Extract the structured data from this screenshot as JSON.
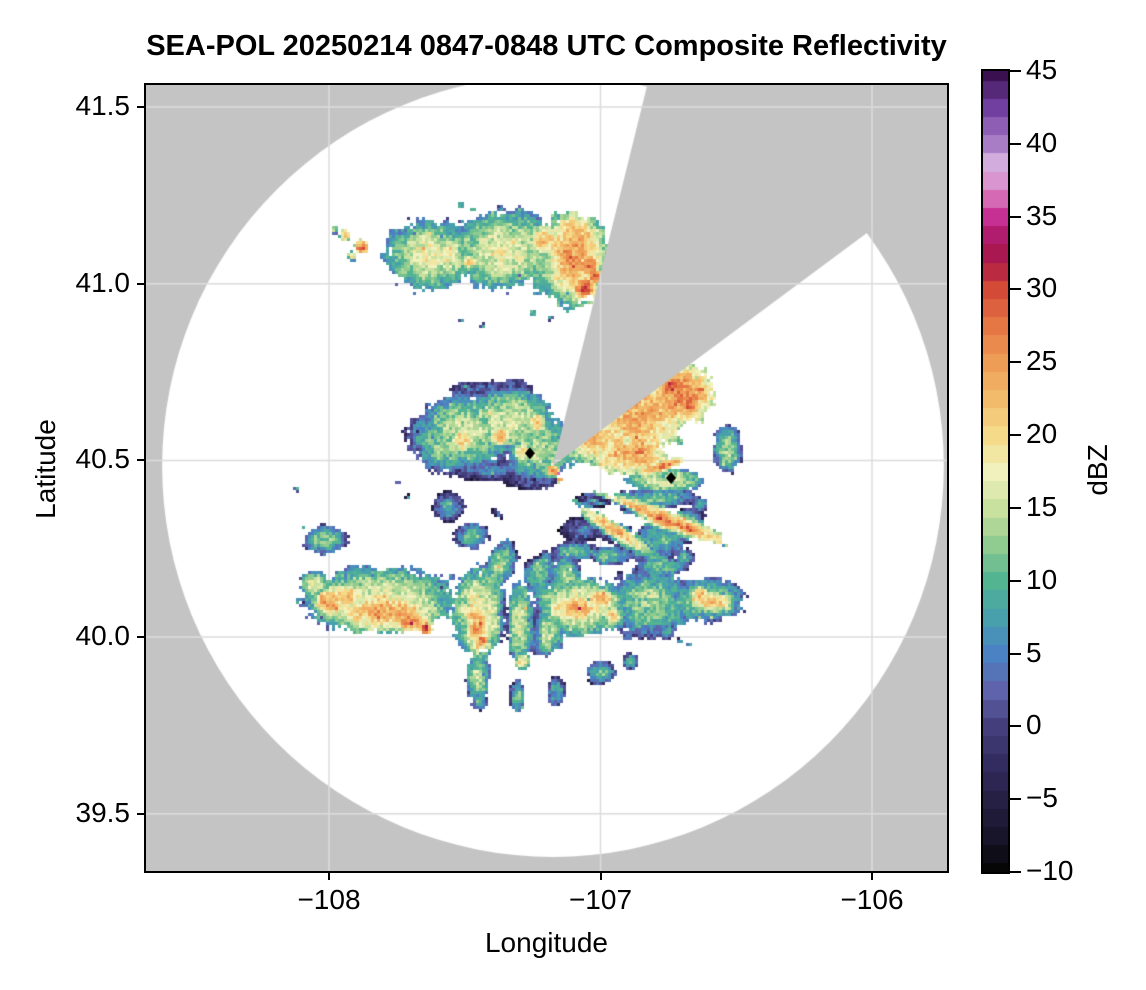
{
  "chart_data": {
    "type": "heatmap",
    "title": "SEA-POL 20250214 0847-0848 UTC Composite Reflectivity",
    "xlabel": "Longitude",
    "ylabel": "Latitude",
    "grid": true,
    "x_axis": {
      "tick_values": [
        -108,
        -107,
        -106
      ],
      "tick_labels": [
        "−108",
        "−107",
        "−106"
      ],
      "limits": [
        -108.67,
        -105.72
      ]
    },
    "y_axis": {
      "tick_values": [
        39.5,
        40.0,
        40.5,
        41.0,
        41.5
      ],
      "tick_labels": [
        "39.5",
        "40.0",
        "40.5",
        "41.0",
        "41.5"
      ],
      "limits": [
        39.34,
        41.56
      ]
    },
    "colorbar": {
      "label": "dBZ",
      "range": [
        -10,
        45
      ],
      "tick_values": [
        -10,
        -5,
        0,
        5,
        10,
        15,
        20,
        25,
        30,
        35,
        40,
        45
      ],
      "tick_labels": [
        "−10",
        "−5",
        "0",
        "5",
        "10",
        "15",
        "20",
        "25",
        "30",
        "35",
        "40",
        "45"
      ]
    },
    "colors": {
      "outside_range": "#c4c4c4",
      "no_echo": "#ffffff",
      "gridline": "#dcdcdc",
      "spine": "#000000",
      "marker": "#000000"
    },
    "radar_site": {
      "lon": -107.175,
      "lat": 40.484,
      "range_deg_lat": 1.106
    },
    "blocked_sector_deg": {
      "from_az": 13.9,
      "to_az": 53.4
    },
    "site_markers": [
      {
        "lon": -107.26,
        "lat": 40.52
      },
      {
        "lon": -106.74,
        "lat": 40.45
      }
    ],
    "colormap_stops": [
      [
        -10,
        "#060606"
      ],
      [
        -7.5,
        "#18142a"
      ],
      [
        -5,
        "#262045"
      ],
      [
        -2.5,
        "#332c60"
      ],
      [
        0,
        "#443f7c"
      ],
      [
        2.5,
        "#5f63ab"
      ],
      [
        5,
        "#4a82c3"
      ],
      [
        7.5,
        "#47a0ac"
      ],
      [
        10,
        "#53b492"
      ],
      [
        12.5,
        "#90cb90"
      ],
      [
        15,
        "#c9e19e"
      ],
      [
        17.5,
        "#f0f1bd"
      ],
      [
        20,
        "#f4da89"
      ],
      [
        22.5,
        "#f1bb6b"
      ],
      [
        25,
        "#ee9d56"
      ],
      [
        27.5,
        "#e57744"
      ],
      [
        30,
        "#d34a37"
      ],
      [
        31.5,
        "#b52442"
      ],
      [
        33,
        "#a31257"
      ],
      [
        35,
        "#c73093"
      ],
      [
        36.5,
        "#d874bb"
      ],
      [
        38.5,
        "#dab5e2"
      ],
      [
        40,
        "#a97cc6"
      ],
      [
        42.5,
        "#713fa0"
      ],
      [
        45,
        "#3a1050"
      ]
    ],
    "echo_format": "[lon, lat, rx_deg, ry_deg, rot_deg, peak_dbz]",
    "echoes": [
      [
        -107.628,
        41.081,
        0.127,
        0.099,
        0,
        17
      ],
      [
        -107.352,
        41.095,
        0.156,
        0.113,
        0,
        17
      ],
      [
        -107.113,
        41.067,
        0.127,
        0.127,
        0,
        17
      ],
      [
        -107.094,
        41.081,
        0.079,
        0.119,
        0,
        25
      ],
      [
        -107.039,
        41.053,
        0.028,
        0.028,
        0,
        27
      ],
      [
        -107.058,
        40.988,
        0.028,
        0.028,
        0,
        31
      ],
      [
        -107.021,
        41.022,
        0.023,
        0.023,
        0,
        28
      ],
      [
        -107.205,
        41.124,
        0.042,
        0.042,
        0,
        22
      ],
      [
        -107.555,
        41.095,
        0.034,
        0.034,
        0,
        20
      ],
      [
        -107.481,
        41.061,
        0.028,
        0.028,
        0,
        19
      ],
      [
        -107.941,
        41.138,
        0.017,
        0.017,
        0,
        23
      ],
      [
        -107.878,
        41.104,
        0.02,
        0.02,
        0,
        27
      ],
      [
        -107.875,
        41.101,
        0.008,
        0.008,
        0,
        30
      ],
      [
        -107.978,
        41.152,
        0.011,
        0.011,
        0,
        15
      ],
      [
        -107.915,
        41.078,
        0.014,
        0.014,
        0,
        19
      ],
      [
        -107.518,
        41.223,
        0.011,
        0.011,
        0,
        13
      ],
      [
        -107.47,
        41.211,
        0.008,
        0.008,
        0,
        12
      ],
      [
        -107.4,
        41.2,
        0.008,
        0.008,
        0,
        12
      ],
      [
        -107.297,
        41.208,
        0.011,
        0.011,
        0,
        13
      ],
      [
        -107.51,
        40.897,
        0.008,
        0.008,
        0,
        11
      ],
      [
        -107.433,
        40.88,
        0.008,
        0.008,
        0,
        10
      ],
      [
        -107.252,
        40.917,
        0.011,
        0.011,
        0,
        11
      ],
      [
        -107.186,
        40.903,
        0.008,
        0.008,
        0,
        10
      ],
      [
        -107.127,
        40.928,
        0.008,
        0.008,
        0,
        11
      ],
      [
        -107.481,
        40.586,
        0.141,
        0.099,
        0,
        15
      ],
      [
        -107.333,
        40.614,
        0.127,
        0.085,
        0,
        16
      ],
      [
        -107.573,
        40.538,
        0.085,
        0.071,
        0,
        13
      ],
      [
        -107.224,
        40.53,
        0.099,
        0.085,
        0,
        15
      ],
      [
        -107.628,
        40.572,
        0.071,
        0.062,
        0,
        10
      ],
      [
        -107.507,
        40.558,
        0.034,
        0.034,
        0,
        22
      ],
      [
        -107.371,
        40.569,
        0.028,
        0.028,
        0,
        23
      ],
      [
        -107.235,
        40.606,
        0.025,
        0.025,
        0,
        24
      ],
      [
        -107.29,
        40.524,
        0.025,
        0.025,
        0,
        21
      ],
      [
        -107.176,
        40.473,
        0.017,
        0.017,
        0,
        26
      ],
      [
        -107.15,
        40.445,
        0.008,
        0.008,
        0,
        30
      ],
      [
        -107.157,
        40.464,
        0.006,
        0.006,
        0,
        35
      ],
      [
        -107.444,
        40.699,
        0.085,
        0.028,
        0,
        4
      ],
      [
        -107.315,
        40.705,
        0.057,
        0.023,
        0,
        3
      ],
      [
        -107.555,
        40.657,
        0.028,
        0.028,
        0,
        5
      ],
      [
        -107.407,
        40.473,
        0.127,
        0.034,
        0,
        5
      ],
      [
        -107.26,
        40.445,
        0.085,
        0.028,
        0,
        4
      ],
      [
        -107.426,
        40.45,
        0.011,
        0.011,
        0,
        0
      ],
      [
        -107.333,
        40.436,
        0.008,
        0.008,
        0,
        -1
      ],
      [
        -107.068,
        40.303,
        0.071,
        0.04,
        0,
        4
      ],
      [
        -107.039,
        40.309,
        0.057,
        0.034,
        0,
        5
      ],
      [
        -106.947,
        40.295,
        0.051,
        0.028,
        0,
        6
      ],
      [
        -107.02,
        40.388,
        0.057,
        0.023,
        0,
        5
      ],
      [
        -107.131,
        40.261,
        0.011,
        0.011,
        0,
        -2
      ],
      [
        -107.058,
        40.331,
        0.008,
        0.008,
        0,
        0
      ],
      [
        -107.094,
        40.241,
        0.071,
        0.028,
        0,
        11
      ],
      [
        -106.965,
        40.23,
        0.057,
        0.028,
        0,
        12
      ],
      [
        -106.862,
        40.246,
        0.028,
        0.028,
        0,
        9
      ],
      [
        -106.8,
        40.246,
        0.023,
        0.023,
        0,
        8
      ],
      [
        -106.707,
        40.318,
        0.014,
        0.014,
        0,
        0
      ],
      [
        -106.663,
        40.297,
        0.011,
        0.011,
        0,
        2
      ],
      [
        -107.558,
        40.368,
        0.048,
        0.04,
        0,
        9
      ],
      [
        -107.58,
        40.388,
        0.023,
        0.023,
        0,
        5
      ],
      [
        -107.473,
        40.286,
        0.048,
        0.04,
        0,
        11
      ],
      [
        -107.381,
        40.351,
        0.023,
        0.011,
        45,
        3
      ],
      [
        -107.709,
        40.396,
        0.008,
        0.008,
        0,
        5
      ],
      [
        -107.746,
        40.439,
        0.008,
        0.008,
        0,
        8
      ],
      [
        -108.118,
        40.419,
        0.008,
        0.008,
        0,
        11
      ],
      [
        -108.015,
        40.275,
        0.062,
        0.042,
        0,
        12
      ],
      [
        -108.041,
        40.258,
        0.011,
        0.011,
        0,
        9
      ],
      [
        -108.096,
        40.309,
        0.008,
        0.008,
        0,
        11
      ],
      [
        -106.855,
        40.628,
        0.127,
        0.113,
        0,
        24
      ],
      [
        -106.707,
        40.685,
        0.099,
        0.085,
        0,
        26
      ],
      [
        -106.737,
        40.705,
        0.04,
        0.04,
        0,
        29
      ],
      [
        -106.67,
        40.657,
        0.034,
        0.034,
        0,
        27
      ],
      [
        -106.634,
        40.699,
        0.014,
        0.014,
        0,
        28
      ],
      [
        -107.002,
        40.558,
        0.113,
        0.071,
        0,
        22
      ],
      [
        -106.892,
        40.515,
        0.113,
        0.057,
        0,
        24
      ],
      [
        -106.855,
        40.524,
        0.071,
        0.017,
        -18,
        27
      ],
      [
        -106.774,
        40.484,
        0.071,
        0.014,
        -18,
        26
      ],
      [
        -106.763,
        40.445,
        0.113,
        0.034,
        0,
        17
      ],
      [
        -106.8,
        40.394,
        0.127,
        0.028,
        0,
        11
      ],
      [
        -106.634,
        40.374,
        0.023,
        0.023,
        0,
        9
      ],
      [
        -106.531,
        40.53,
        0.042,
        0.071,
        0,
        13
      ],
      [
        -106.781,
        40.694,
        0.057,
        0.023,
        -37,
        12
      ],
      [
        -106.947,
        40.628,
        0.042,
        0.042,
        0,
        18
      ],
      [
        -106.752,
        40.331,
        0.192,
        0.025,
        20,
        25
      ],
      [
        -106.737,
        40.323,
        0.136,
        0.011,
        20,
        28
      ],
      [
        -106.947,
        40.303,
        0.113,
        0.02,
        33,
        23
      ],
      [
        -106.855,
        40.255,
        0.085,
        0.028,
        25,
        10
      ],
      [
        -106.774,
        40.201,
        0.079,
        0.034,
        0,
        11
      ],
      [
        -106.689,
        40.224,
        0.028,
        0.028,
        0,
        9
      ],
      [
        -106.615,
        40.105,
        0.113,
        0.062,
        0,
        14
      ],
      [
        -106.589,
        40.099,
        0.062,
        0.028,
        0,
        22
      ],
      [
        -106.634,
        40.122,
        0.023,
        0.023,
        0,
        24
      ],
      [
        -106.707,
        39.989,
        0.008,
        0.008,
        0,
        9
      ],
      [
        -106.674,
        39.978,
        0.008,
        0.008,
        0,
        8
      ],
      [
        -106.781,
        40.274,
        0.079,
        0.057,
        0,
        10
      ],
      [
        -106.67,
        40.331,
        0.042,
        0.034,
        0,
        9
      ],
      [
        -107.812,
        40.105,
        0.221,
        0.093,
        0,
        17
      ],
      [
        -107.794,
        40.071,
        0.141,
        0.051,
        0,
        24
      ],
      [
        -107.694,
        40.045,
        0.051,
        0.028,
        0,
        27
      ],
      [
        -107.646,
        40.025,
        0.017,
        0.017,
        0,
        30
      ],
      [
        -107.941,
        40.116,
        0.057,
        0.034,
        0,
        22
      ],
      [
        -107.996,
        40.099,
        0.04,
        0.04,
        0,
        25
      ],
      [
        -108.022,
        40.113,
        0.014,
        0.014,
        0,
        27
      ],
      [
        -107.974,
        40.082,
        0.014,
        0.014,
        0,
        26
      ],
      [
        -108.052,
        40.147,
        0.042,
        0.042,
        0,
        17
      ],
      [
        -107.923,
        40.19,
        0.014,
        0.014,
        0,
        10
      ],
      [
        -107.665,
        40.181,
        0.011,
        0.011,
        0,
        9
      ],
      [
        -107.547,
        40.17,
        0.011,
        0.011,
        0,
        10
      ],
      [
        -107.444,
        40.071,
        0.079,
        0.127,
        0,
        18
      ],
      [
        -107.452,
        40.029,
        0.034,
        0.074,
        0,
        24
      ],
      [
        -107.44,
        39.989,
        0.023,
        0.023,
        0,
        27
      ],
      [
        -107.469,
        40.06,
        0.02,
        0.02,
        0,
        26
      ],
      [
        -107.452,
        39.887,
        0.034,
        0.068,
        0,
        15
      ],
      [
        -107.444,
        39.816,
        0.023,
        0.023,
        0,
        10
      ],
      [
        -107.297,
        40.042,
        0.04,
        0.113,
        0,
        16
      ],
      [
        -107.286,
        39.932,
        0.023,
        0.023,
        0,
        20
      ],
      [
        -107.305,
        39.833,
        0.023,
        0.048,
        0,
        11
      ],
      [
        -107.076,
        40.085,
        0.127,
        0.085,
        0,
        18
      ],
      [
        -107.087,
        40.082,
        0.079,
        0.04,
        0,
        24
      ],
      [
        -107.098,
        40.09,
        0.014,
        0.014,
        0,
        28
      ],
      [
        -107.079,
        40.079,
        0.008,
        0.008,
        0,
        31
      ],
      [
        -107.002,
        40.108,
        0.051,
        0.028,
        0,
        23
      ],
      [
        -106.954,
        40.059,
        0.028,
        0.028,
        0,
        21
      ],
      [
        -107.205,
        40.014,
        0.057,
        0.071,
        0,
        15
      ],
      [
        -106.818,
        40.099,
        0.127,
        0.099,
        0,
        13
      ],
      [
        -106.855,
        40.144,
        0.034,
        0.051,
        0,
        9
      ],
      [
        -106.9,
        40.003,
        0.017,
        0.017,
        0,
        9
      ],
      [
        -106.755,
        40.017,
        0.023,
        0.023,
        0,
        10
      ],
      [
        -107.164,
        39.847,
        0.028,
        0.042,
        0,
        10
      ],
      [
        -106.998,
        39.901,
        0.042,
        0.034,
        0,
        11
      ],
      [
        -106.888,
        39.932,
        0.023,
        0.023,
        0,
        10
      ],
      [
        -107.371,
        40.199,
        0.085,
        0.042,
        117,
        13
      ],
      [
        -107.224,
        40.184,
        0.071,
        0.042,
        97,
        13
      ],
      [
        -107.124,
        40.17,
        0.057,
        0.042,
        83,
        14
      ]
    ],
    "clear_notch_format": "[lon, lat, rx_deg, ry_deg, rot_deg, carve_amount_dbz]",
    "clear_notches": [
      [
        -107.352,
        40.042,
        0.017,
        0.13,
        0,
        8
      ],
      [
        -107.235,
        40.011,
        0.017,
        0.113,
        0,
        8
      ],
      [
        -107.26,
        40.275,
        0.057,
        0.071,
        0,
        25
      ],
      [
        -106.947,
        40.374,
        0.11,
        0.011,
        22,
        18
      ]
    ]
  }
}
